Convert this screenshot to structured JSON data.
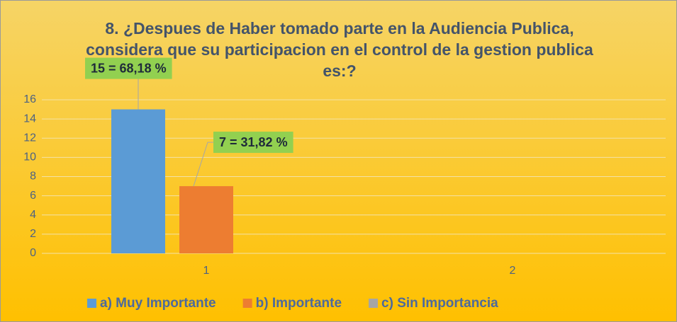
{
  "chart_data": {
    "type": "bar",
    "title": "8.  ¿Despues de Haber tomado  parte en la Audiencia Publica, considera que su participacion  en el control de la gestion publica  es:?",
    "categories": [
      "1",
      "2"
    ],
    "series": [
      {
        "name": "a) Muy Importante",
        "color": "#5b9bd5",
        "values": [
          15,
          null
        ],
        "value_labels": [
          "15 = 68,18 %",
          null
        ]
      },
      {
        "name": "b) Importante",
        "color": "#ed7d31",
        "values": [
          7,
          null
        ],
        "value_labels": [
          "7 = 31,82 %",
          null
        ]
      },
      {
        "name": "c) Sin Importancia",
        "color": "#a5a5a5",
        "values": [
          null,
          null
        ]
      }
    ],
    "ylim": [
      0,
      16
    ],
    "yticks": [
      0,
      2,
      4,
      6,
      8,
      10,
      12,
      14,
      16
    ],
    "grid": true,
    "legend": "bottom"
  }
}
